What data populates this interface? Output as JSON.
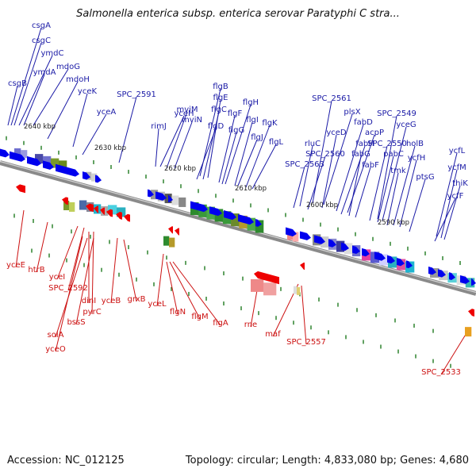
{
  "header": {
    "title": "Salmonella enterica subsp. enterica serovar Paratyphi C stra..."
  },
  "footer": {
    "accession": "Accession: NC_012125",
    "summary": "Topology: circular; Length: 4,833,080 bp; Genes: 4,680"
  },
  "colors": {
    "forward_gene": "#0000ee",
    "reverse_gene": "#ee0000",
    "forward_label": "#1a1aa6",
    "reverse_label": "#cc1111",
    "backbone": "#8a8a8a",
    "tick": "#1f7a1f"
  },
  "map": {
    "kbp_labels": [
      "2640 kbp",
      "2630 kbp",
      "2620 kbp",
      "2610 kbp",
      "2600 kbp",
      "2590 kbp"
    ],
    "forward_labels": [
      "csgA",
      "csgC",
      "ymdC",
      "ymdA",
      "csgB",
      "mdoG",
      "mdoH",
      "yceK",
      "yceA",
      "SPC_2591",
      "yceH",
      "rimJ",
      "mviM",
      "mviN",
      "flgB",
      "flgE",
      "flgC",
      "flgD",
      "flgF",
      "flgH",
      "flgG",
      "flgI",
      "flgJ",
      "flgK",
      "flgL",
      "SPC_2561",
      "plsX",
      "rluC",
      "yceD",
      "fabD",
      "acpP",
      "SPC_2560",
      "fabH",
      "fabG",
      "SPC_2563",
      "fabF",
      "SPC_2549",
      "yceG",
      "SPC_2550",
      "pabC",
      "holB",
      "ycfH",
      "tmk",
      "ptsG",
      "ycfL",
      "ycfM",
      "thiK",
      "ycfF"
    ],
    "reverse_labels": [
      "yceE",
      "htrB",
      "yceI",
      "SPC_2592",
      "dinI",
      "pyrC",
      "yceB",
      "grxB",
      "bssS",
      "solA",
      "yceO",
      "yceL",
      "flgN",
      "flgM",
      "flgA",
      "rne",
      "maf",
      "SPC_2557",
      "SPC_2533"
    ]
  }
}
